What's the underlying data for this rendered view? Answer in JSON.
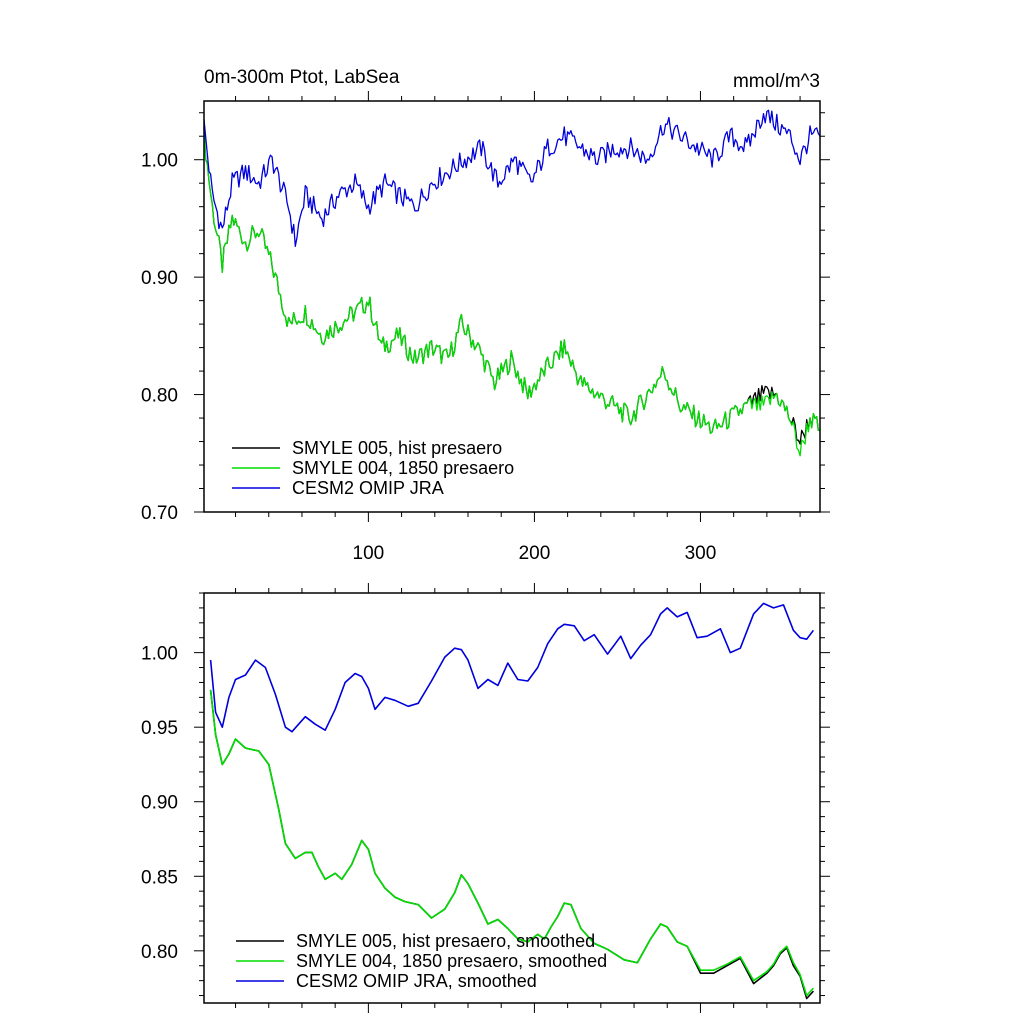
{
  "chart_data": [
    {
      "type": "line",
      "title": "0m-300m Ptot, LabSea",
      "units": "mmol/m^3",
      "xlabel": "",
      "ylabel": "",
      "xlim": [
        1,
        372
      ],
      "ylim": [
        0.7,
        1.05
      ],
      "x_ticks": [
        100,
        200,
        300
      ],
      "y_ticks": [
        0.7,
        0.8,
        0.9,
        1.0
      ],
      "y_tick_labels": [
        "0.70",
        "0.80",
        "0.90",
        "1.00"
      ],
      "grid": false,
      "legend_position": "bottom-left",
      "series": [
        {
          "name": "SMYLE 005, hist presaero",
          "color": "#000000",
          "x": [
            1,
            6,
            12,
            18,
            26,
            34,
            42,
            52,
            62,
            72,
            82,
            92,
            100,
            108,
            118,
            128,
            138,
            148,
            156,
            166,
            176,
            186,
            196,
            206,
            218,
            228,
            238,
            248,
            258,
            268,
            278,
            288,
            298,
            308,
            318,
            328,
            338,
            346,
            354,
            360,
            366,
            372
          ],
          "y": [
            1.02,
            0.96,
            0.91,
            0.95,
            0.93,
            0.94,
            0.91,
            0.86,
            0.87,
            0.85,
            0.86,
            0.87,
            0.88,
            0.84,
            0.85,
            0.83,
            0.84,
            0.83,
            0.86,
            0.84,
            0.81,
            0.83,
            0.8,
            0.82,
            0.84,
            0.81,
            0.8,
            0.79,
            0.78,
            0.8,
            0.82,
            0.79,
            0.78,
            0.77,
            0.78,
            0.79,
            0.8,
            0.8,
            0.78,
            0.76,
            0.78,
            0.77
          ]
        },
        {
          "name": "SMYLE 004, 1850 presaero",
          "color": "#00dd00",
          "x": [
            1,
            6,
            12,
            18,
            26,
            34,
            42,
            52,
            62,
            72,
            82,
            92,
            100,
            108,
            118,
            128,
            138,
            148,
            156,
            166,
            176,
            186,
            196,
            206,
            218,
            228,
            238,
            248,
            258,
            268,
            278,
            288,
            298,
            308,
            318,
            328,
            338,
            346,
            354,
            360,
            366,
            372
          ],
          "y": [
            1.02,
            0.96,
            0.91,
            0.95,
            0.93,
            0.94,
            0.91,
            0.86,
            0.87,
            0.85,
            0.86,
            0.87,
            0.88,
            0.84,
            0.85,
            0.83,
            0.84,
            0.83,
            0.86,
            0.84,
            0.81,
            0.83,
            0.8,
            0.82,
            0.84,
            0.81,
            0.8,
            0.79,
            0.78,
            0.8,
            0.82,
            0.79,
            0.78,
            0.77,
            0.78,
            0.79,
            0.79,
            0.8,
            0.78,
            0.75,
            0.78,
            0.77
          ]
        },
        {
          "name": "CESM2 OMIP JRA",
          "color": "#0000dd",
          "x": [
            1,
            6,
            12,
            18,
            26,
            34,
            42,
            52,
            56,
            62,
            72,
            82,
            92,
            100,
            110,
            118,
            128,
            138,
            148,
            158,
            168,
            178,
            188,
            198,
            208,
            218,
            228,
            238,
            248,
            258,
            268,
            278,
            288,
            298,
            308,
            318,
            328,
            338,
            346,
            354,
            360,
            366,
            372
          ],
          "y": [
            1.03,
            0.97,
            0.94,
            0.98,
            0.99,
            0.98,
            1.0,
            0.96,
            0.93,
            0.97,
            0.95,
            0.97,
            0.98,
            0.96,
            0.98,
            0.97,
            0.96,
            0.98,
            0.99,
            1.0,
            1.01,
            0.98,
            1.0,
            0.98,
            1.01,
            1.02,
            1.01,
            1.0,
            1.01,
            1.01,
            1.0,
            1.03,
            1.02,
            1.01,
            1.0,
            1.02,
            1.01,
            1.04,
            1.03,
            1.02,
            1.0,
            1.02,
            1.02
          ]
        }
      ]
    },
    {
      "type": "line",
      "title": "",
      "xlabel": "",
      "ylabel": "",
      "xlim": [
        1,
        372
      ],
      "ylim": [
        0.765,
        1.04
      ],
      "x_ticks": [
        100,
        200,
        300
      ],
      "y_ticks": [
        0.8,
        0.85,
        0.9,
        0.95,
        1.0
      ],
      "y_tick_labels": [
        "0.80",
        "0.85",
        "0.90",
        "0.95",
        "1.00"
      ],
      "grid": false,
      "legend_position": "bottom-left",
      "series": [
        {
          "name": "SMYLE 005, hist presaero, smoothed",
          "color": "#000000",
          "x": [
            5,
            8,
            12,
            16,
            20,
            26,
            34,
            40,
            46,
            50,
            56,
            62,
            66,
            70,
            74,
            80,
            84,
            90,
            96,
            100,
            104,
            110,
            116,
            122,
            130,
            138,
            146,
            152,
            156,
            160,
            166,
            172,
            178,
            184,
            190,
            196,
            202,
            206,
            210,
            214,
            218,
            222,
            228,
            236,
            244,
            254,
            262,
            270,
            276,
            280,
            286,
            292,
            300,
            308,
            316,
            324,
            332,
            340,
            344,
            348,
            352,
            356,
            360,
            364,
            368
          ],
          "y": [
            0.975,
            0.945,
            0.925,
            0.932,
            0.942,
            0.936,
            0.934,
            0.925,
            0.895,
            0.872,
            0.862,
            0.866,
            0.866,
            0.856,
            0.848,
            0.852,
            0.848,
            0.858,
            0.874,
            0.868,
            0.852,
            0.842,
            0.836,
            0.833,
            0.831,
            0.822,
            0.828,
            0.839,
            0.851,
            0.845,
            0.832,
            0.818,
            0.821,
            0.815,
            0.808,
            0.806,
            0.811,
            0.808,
            0.816,
            0.823,
            0.832,
            0.831,
            0.815,
            0.805,
            0.801,
            0.794,
            0.792,
            0.808,
            0.818,
            0.816,
            0.806,
            0.803,
            0.785,
            0.785,
            0.79,
            0.795,
            0.778,
            0.785,
            0.79,
            0.798,
            0.802,
            0.79,
            0.783,
            0.768,
            0.773
          ]
        },
        {
          "name": "SMYLE 004, 1850 presaero, smoothed",
          "color": "#00dd00",
          "x": [
            5,
            8,
            12,
            16,
            20,
            26,
            34,
            40,
            46,
            50,
            56,
            62,
            66,
            70,
            74,
            80,
            84,
            90,
            96,
            100,
            104,
            110,
            116,
            122,
            130,
            138,
            146,
            152,
            156,
            160,
            166,
            172,
            178,
            184,
            190,
            196,
            202,
            206,
            210,
            214,
            218,
            222,
            228,
            236,
            244,
            254,
            262,
            270,
            276,
            280,
            286,
            292,
            300,
            308,
            316,
            324,
            332,
            340,
            344,
            348,
            352,
            356,
            360,
            364,
            368
          ],
          "y": [
            0.975,
            0.945,
            0.925,
            0.932,
            0.942,
            0.936,
            0.934,
            0.925,
            0.895,
            0.872,
            0.862,
            0.866,
            0.866,
            0.856,
            0.848,
            0.852,
            0.848,
            0.858,
            0.874,
            0.868,
            0.852,
            0.842,
            0.836,
            0.833,
            0.831,
            0.822,
            0.828,
            0.839,
            0.851,
            0.845,
            0.832,
            0.818,
            0.821,
            0.815,
            0.808,
            0.806,
            0.811,
            0.808,
            0.816,
            0.823,
            0.832,
            0.831,
            0.815,
            0.805,
            0.801,
            0.794,
            0.792,
            0.808,
            0.818,
            0.816,
            0.806,
            0.803,
            0.787,
            0.787,
            0.791,
            0.796,
            0.78,
            0.786,
            0.791,
            0.799,
            0.803,
            0.792,
            0.784,
            0.77,
            0.775
          ]
        },
        {
          "name": "CESM2 OMIP JRA, smoothed",
          "color": "#0000dd",
          "x": [
            5,
            8,
            12,
            16,
            20,
            26,
            32,
            38,
            44,
            50,
            54,
            58,
            62,
            68,
            74,
            80,
            86,
            92,
            96,
            100,
            104,
            110,
            116,
            124,
            130,
            138,
            146,
            152,
            156,
            160,
            166,
            172,
            178,
            184,
            190,
            196,
            202,
            208,
            214,
            218,
            224,
            230,
            236,
            244,
            252,
            258,
            264,
            270,
            276,
            280,
            286,
            292,
            298,
            304,
            312,
            318,
            324,
            332,
            338,
            344,
            350,
            356,
            360,
            364,
            368
          ],
          "y": [
            0.995,
            0.96,
            0.95,
            0.97,
            0.982,
            0.985,
            0.995,
            0.99,
            0.972,
            0.95,
            0.947,
            0.952,
            0.957,
            0.952,
            0.948,
            0.962,
            0.98,
            0.986,
            0.984,
            0.976,
            0.962,
            0.97,
            0.968,
            0.964,
            0.966,
            0.981,
            0.997,
            1.003,
            1.002,
            0.995,
            0.976,
            0.982,
            0.978,
            0.993,
            0.982,
            0.981,
            0.99,
            1.006,
            1.016,
            1.019,
            1.018,
            1.008,
            1.012,
            0.999,
            1.011,
            0.996,
            1.005,
            1.012,
            1.026,
            1.03,
            1.024,
            1.027,
            1.01,
            1.011,
            1.016,
            1.0,
            1.003,
            1.026,
            1.033,
            1.03,
            1.032,
            1.015,
            1.01,
            1.009,
            1.015
          ]
        }
      ]
    }
  ]
}
